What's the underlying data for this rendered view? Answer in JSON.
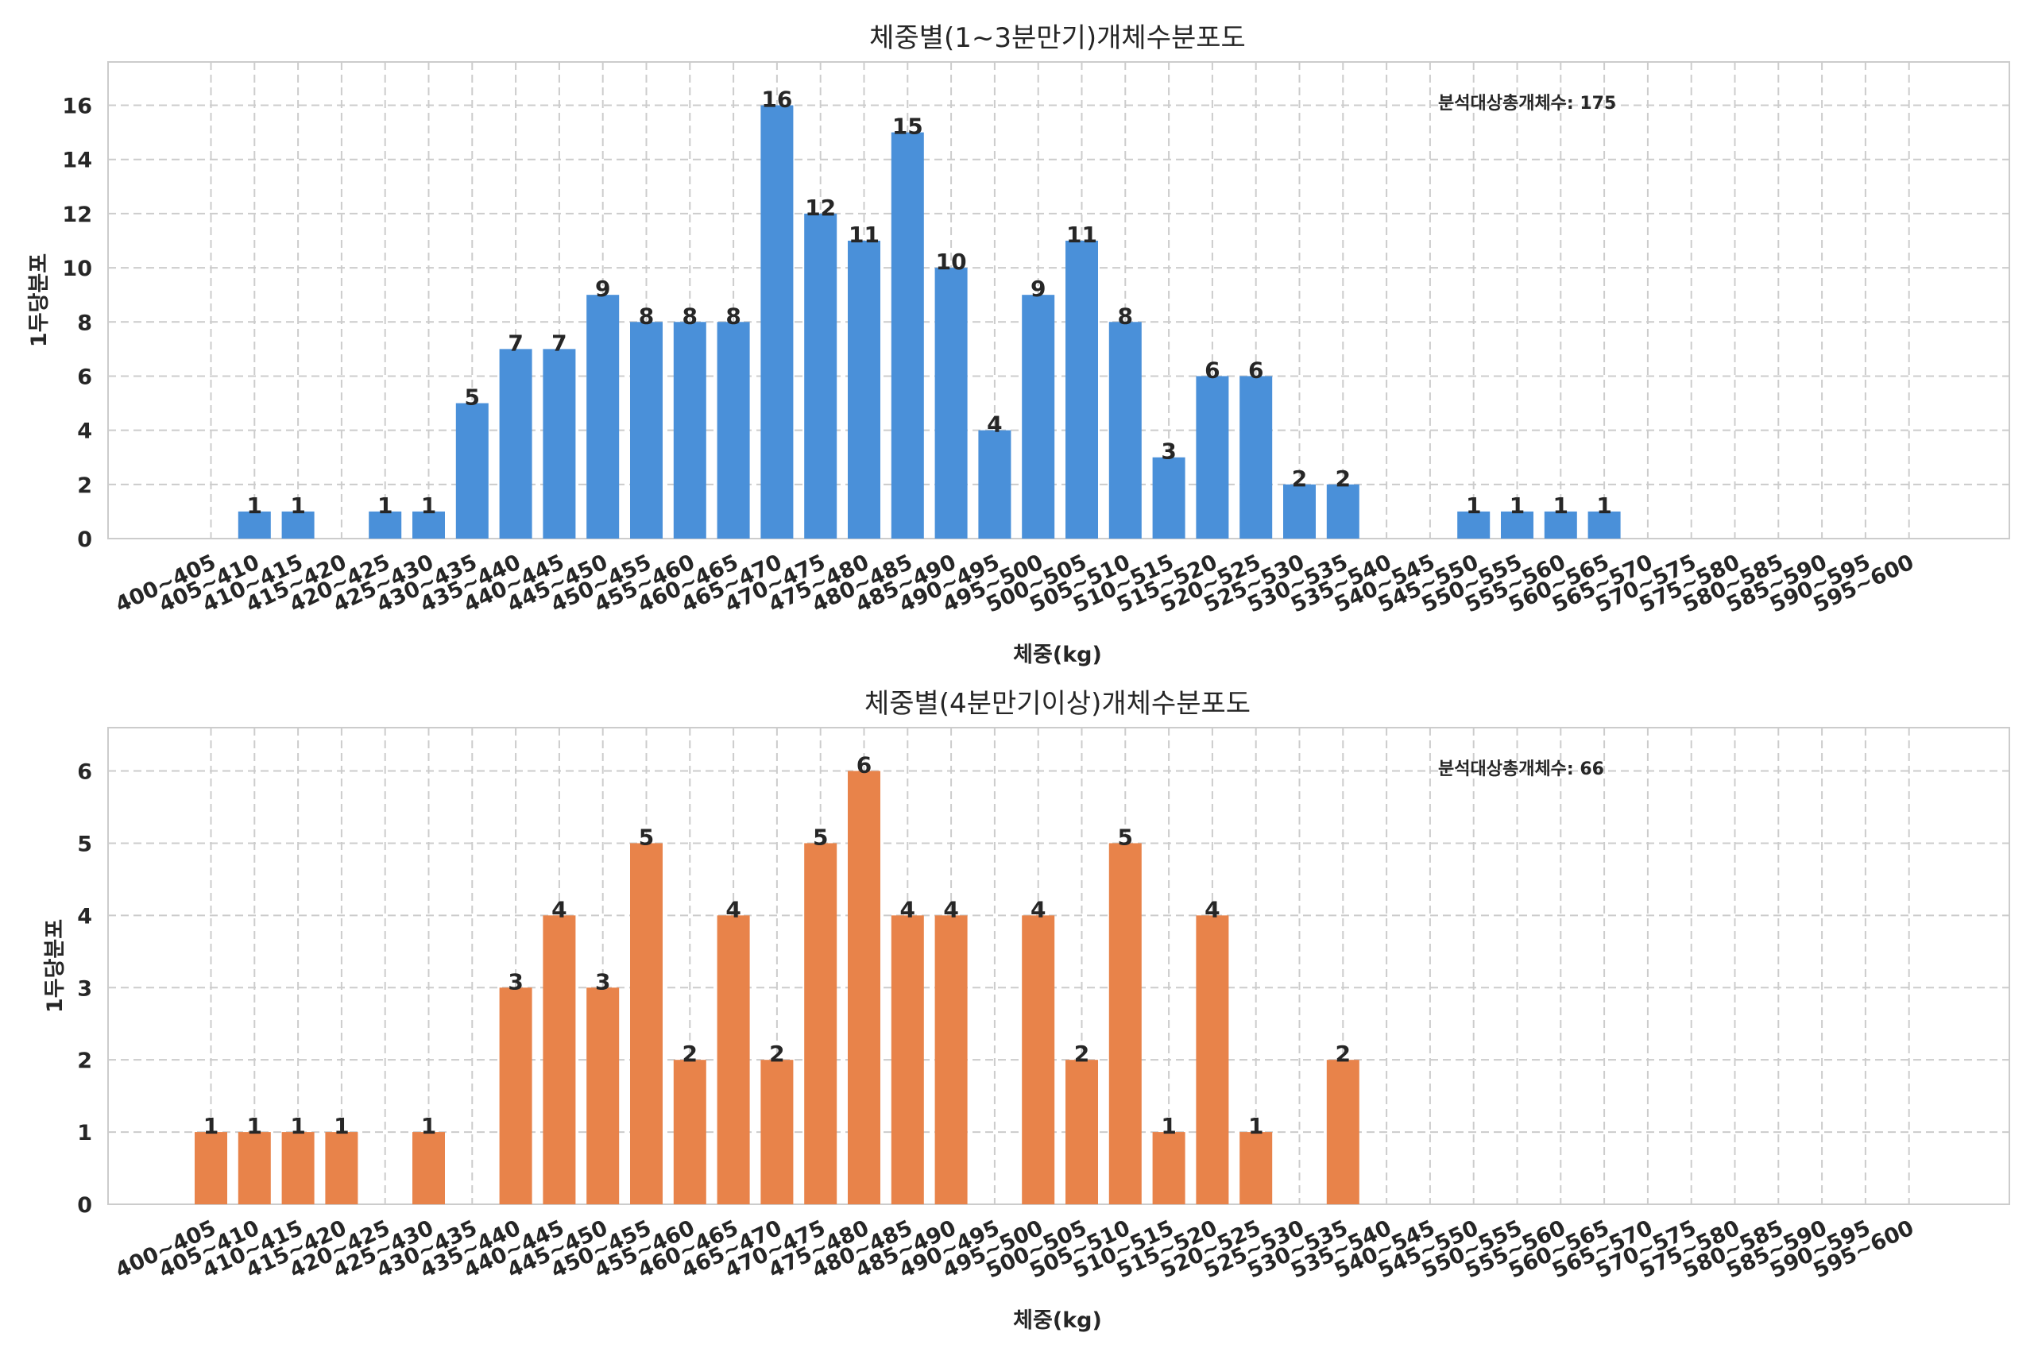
{
  "chart_data": [
    {
      "type": "bar",
      "title": "체중별(1~3분만기)개체수분포도",
      "xlabel": "체중(kg)",
      "ylabel": "1두당분포",
      "color": "#4a90d9",
      "categories": [
        "400~405",
        "405~410",
        "410~415",
        "415~420",
        "420~425",
        "425~430",
        "430~435",
        "435~440",
        "440~445",
        "445~450",
        "450~455",
        "455~460",
        "460~465",
        "465~470",
        "470~475",
        "475~480",
        "480~485",
        "485~490",
        "490~495",
        "495~500",
        "500~505",
        "505~510",
        "510~515",
        "515~520",
        "520~525",
        "525~530",
        "530~535",
        "535~540",
        "540~545",
        "545~550",
        "550~555",
        "555~560",
        "560~565",
        "565~570",
        "570~575",
        "575~580",
        "580~585",
        "585~590",
        "590~595",
        "595~600"
      ],
      "values": [
        0,
        1,
        1,
        0,
        1,
        1,
        5,
        7,
        7,
        9,
        8,
        8,
        8,
        16,
        12,
        11,
        15,
        10,
        4,
        9,
        11,
        8,
        3,
        6,
        6,
        2,
        2,
        0,
        0,
        1,
        1,
        1,
        1,
        0,
        0,
        0,
        0,
        0,
        0,
        0
      ],
      "yticks": [
        0,
        2,
        4,
        6,
        8,
        10,
        12,
        14,
        16
      ],
      "ylim": [
        0,
        17.6
      ],
      "annotation": "분석대상총개체수: 175",
      "grid": true
    },
    {
      "type": "bar",
      "title": "체중별(4분만기이상)개체수분포도",
      "xlabel": "체중(kg)",
      "ylabel": "1두당분포",
      "color": "#e8834a",
      "categories": [
        "400~405",
        "405~410",
        "410~415",
        "415~420",
        "420~425",
        "425~430",
        "430~435",
        "435~440",
        "440~445",
        "445~450",
        "450~455",
        "455~460",
        "460~465",
        "465~470",
        "470~475",
        "475~480",
        "480~485",
        "485~490",
        "490~495",
        "495~500",
        "500~505",
        "505~510",
        "510~515",
        "515~520",
        "520~525",
        "525~530",
        "530~535",
        "535~540",
        "540~545",
        "545~550",
        "550~555",
        "555~560",
        "560~565",
        "565~570",
        "570~575",
        "575~580",
        "580~585",
        "585~590",
        "590~595",
        "595~600"
      ],
      "values": [
        1,
        1,
        1,
        1,
        0,
        1,
        0,
        3,
        4,
        3,
        5,
        2,
        4,
        2,
        5,
        6,
        4,
        4,
        0,
        4,
        2,
        5,
        1,
        4,
        1,
        0,
        2,
        0,
        0,
        0,
        0,
        0,
        0,
        0,
        0,
        0,
        0,
        0,
        0,
        0
      ],
      "yticks": [
        0,
        1,
        2,
        3,
        4,
        5,
        6
      ],
      "ylim": [
        0,
        6.6
      ],
      "annotation": "분석대상총개체수: 66",
      "grid": true
    }
  ]
}
